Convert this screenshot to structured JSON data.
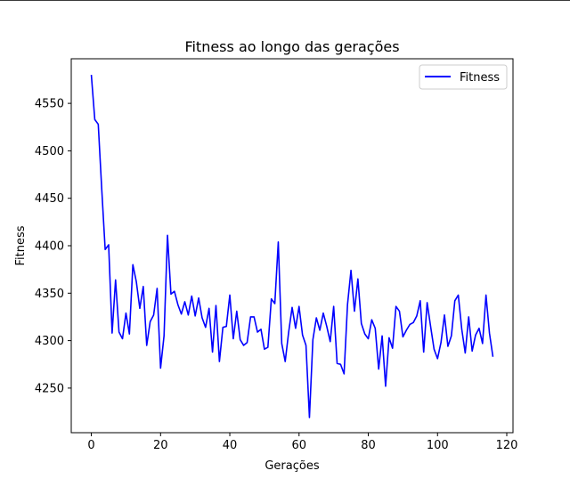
{
  "chart_data": {
    "type": "line",
    "title": "Fitness ao longo das gerações",
    "xlabel": "Gerações",
    "ylabel": "Fitness",
    "xlim": [
      -5.8,
      121.8
    ],
    "ylim": [
      4203,
      4597
    ],
    "xticks": [
      0,
      20,
      40,
      60,
      80,
      100,
      120
    ],
    "yticks": [
      4250,
      4300,
      4350,
      4400,
      4450,
      4500,
      4550
    ],
    "grid": false,
    "legend_position": "top-right",
    "series": [
      {
        "name": "Fitness",
        "color": "#0000ff",
        "x": [
          0,
          1,
          2,
          3,
          4,
          5,
          6,
          7,
          8,
          9,
          10,
          11,
          12,
          13,
          14,
          15,
          16,
          17,
          18,
          19,
          20,
          21,
          22,
          23,
          24,
          25,
          26,
          27,
          28,
          29,
          30,
          31,
          32,
          33,
          34,
          35,
          36,
          37,
          38,
          39,
          40,
          41,
          42,
          43,
          44,
          45,
          46,
          47,
          48,
          49,
          50,
          51,
          52,
          53,
          54,
          55,
          56,
          57,
          58,
          59,
          60,
          61,
          62,
          63,
          64,
          65,
          66,
          67,
          68,
          69,
          70,
          71,
          72,
          73,
          74,
          75,
          76,
          77,
          78,
          79,
          80,
          81,
          82,
          83,
          84,
          85,
          86,
          87,
          88,
          89,
          90,
          91,
          92,
          93,
          94,
          95,
          96,
          97,
          98,
          99,
          100,
          101,
          102,
          103,
          104,
          105,
          106,
          107,
          108,
          109,
          110,
          111,
          112,
          113,
          114,
          115,
          116
        ],
        "values": [
          4580,
          4533,
          4528,
          4460,
          4396,
          4401,
          4308,
          4364,
          4309,
          4302,
          4329,
          4307,
          4380,
          4362,
          4334,
          4357,
          4295,
          4320,
          4327,
          4355,
          4271,
          4305,
          4411,
          4349,
          4352,
          4338,
          4328,
          4341,
          4327,
          4347,
          4326,
          4345,
          4324,
          4314,
          4334,
          4288,
          4337,
          4278,
          4314,
          4315,
          4348,
          4302,
          4331,
          4301,
          4295,
          4298,
          4325,
          4325,
          4309,
          4312,
          4291,
          4293,
          4344,
          4339,
          4404,
          4297,
          4278,
          4309,
          4335,
          4313,
          4336,
          4306,
          4295,
          4219,
          4301,
          4324,
          4311,
          4329,
          4315,
          4299,
          4336,
          4276,
          4275,
          4265,
          4338,
          4374,
          4331,
          4365,
          4318,
          4307,
          4302,
          4322,
          4313,
          4270,
          4305,
          4252,
          4303,
          4292,
          4336,
          4331,
          4304,
          4311,
          4317,
          4319,
          4326,
          4342,
          4288,
          4340,
          4315,
          4291,
          4281,
          4298,
          4327,
          4294,
          4305,
          4342,
          4348,
          4312,
          4287,
          4325,
          4289,
          4306,
          4313,
          4297,
          4348,
          4308,
          4283
        ]
      }
    ]
  }
}
